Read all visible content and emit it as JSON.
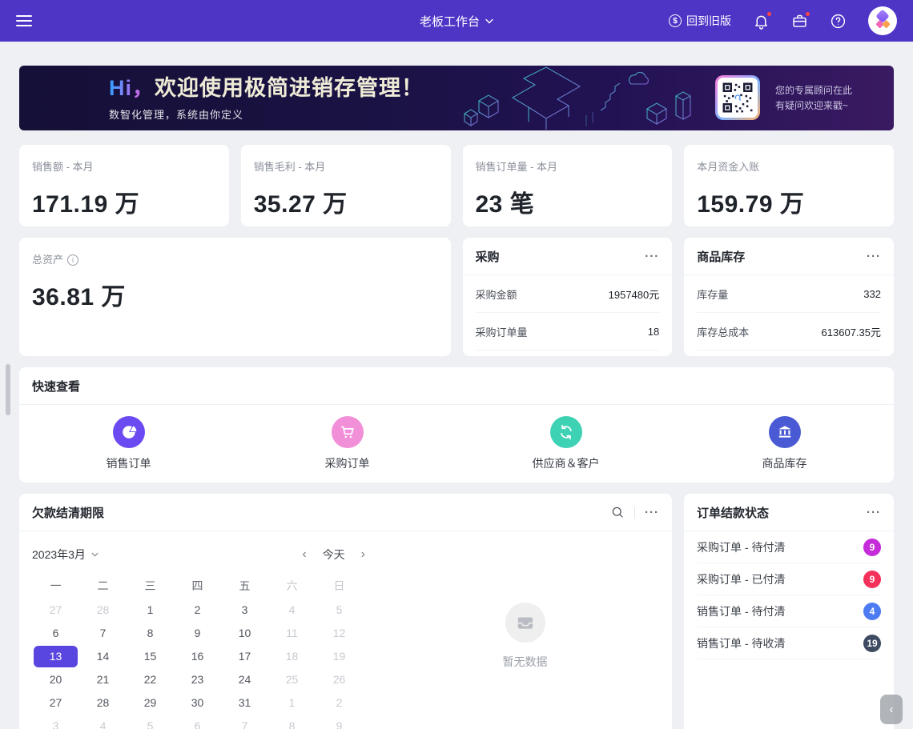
{
  "ui": {
    "more": "···",
    "prev": "‹",
    "next": "›",
    "side_toggle": "‹"
  },
  "navbar": {
    "title": "老板工作台",
    "back_to_old_label": "回到旧版",
    "bg_color": "#4F35C6"
  },
  "banner": {
    "greeting_highlight": "Hi，",
    "greeting": "欢迎使用极简进销存管理！",
    "subtitle": "数智化管理，系统由你定义",
    "qr_caption_line1": "您的专属顾问在此",
    "qr_caption_line2": "有疑问欢迎来戳~"
  },
  "stat_cards": [
    {
      "label": "销售额 - 本月",
      "value": "171.19 万"
    },
    {
      "label": "销售毛利 - 本月",
      "value": "35.27 万"
    },
    {
      "label": "销售订单量 - 本月",
      "value": "23 笔"
    },
    {
      "label": "本月资金入账",
      "value": "159.79 万"
    }
  ],
  "asset_card": {
    "label": "总资产",
    "value": "36.81 万"
  },
  "purchase_card": {
    "title": "采购",
    "rows": [
      {
        "label": "采购金额",
        "value": "1957480元"
      },
      {
        "label": "采购订单量",
        "value": "18"
      }
    ]
  },
  "inventory_card": {
    "title": "商品库存",
    "rows": [
      {
        "label": "库存量",
        "value": "332"
      },
      {
        "label": "库存总成本",
        "value": "613607.35元"
      }
    ]
  },
  "quick_view": {
    "title": "快速查看",
    "items": [
      {
        "label": "销售订单",
        "icon": "pie-chart-icon",
        "color": "#6B4AF1"
      },
      {
        "label": "采购订单",
        "icon": "cart-icon",
        "color": "#F18FD9"
      },
      {
        "label": "供应商＆客户",
        "icon": "sync-icon",
        "color": "#3ED2B5"
      },
      {
        "label": "商品库存",
        "icon": "bank-icon",
        "color": "#4A5AD5"
      }
    ]
  },
  "calendar_card": {
    "title": "欠款结清期限",
    "month_label": "2023年3月",
    "today_label": "今天",
    "selected_color": "#5946E0",
    "empty_text": "暂无数据",
    "weekdays": [
      {
        "label": "一",
        "s": "normal"
      },
      {
        "label": "二",
        "s": "normal"
      },
      {
        "label": "三",
        "s": "normal"
      },
      {
        "label": "四",
        "s": "normal"
      },
      {
        "label": "五",
        "s": "normal"
      },
      {
        "label": "六",
        "s": "muted"
      },
      {
        "label": "日",
        "s": "muted"
      }
    ],
    "weeks": [
      [
        {
          "d": "27",
          "s": "muted"
        },
        {
          "d": "28",
          "s": "muted"
        },
        {
          "d": "1",
          "s": "normal"
        },
        {
          "d": "2",
          "s": "normal"
        },
        {
          "d": "3",
          "s": "normal"
        },
        {
          "d": "4",
          "s": "muted"
        },
        {
          "d": "5",
          "s": "muted"
        }
      ],
      [
        {
          "d": "6",
          "s": "normal"
        },
        {
          "d": "7",
          "s": "normal"
        },
        {
          "d": "8",
          "s": "normal"
        },
        {
          "d": "9",
          "s": "normal"
        },
        {
          "d": "10",
          "s": "normal"
        },
        {
          "d": "11",
          "s": "muted"
        },
        {
          "d": "12",
          "s": "muted"
        }
      ],
      [
        {
          "d": "13",
          "s": "selected"
        },
        {
          "d": "14",
          "s": "normal"
        },
        {
          "d": "15",
          "s": "normal"
        },
        {
          "d": "16",
          "s": "normal"
        },
        {
          "d": "17",
          "s": "normal"
        },
        {
          "d": "18",
          "s": "muted"
        },
        {
          "d": "19",
          "s": "muted"
        }
      ],
      [
        {
          "d": "20",
          "s": "normal"
        },
        {
          "d": "21",
          "s": "normal"
        },
        {
          "d": "22",
          "s": "normal"
        },
        {
          "d": "23",
          "s": "normal"
        },
        {
          "d": "24",
          "s": "normal"
        },
        {
          "d": "25",
          "s": "muted"
        },
        {
          "d": "26",
          "s": "muted"
        }
      ],
      [
        {
          "d": "27",
          "s": "normal"
        },
        {
          "d": "28",
          "s": "normal"
        },
        {
          "d": "29",
          "s": "normal"
        },
        {
          "d": "30",
          "s": "normal"
        },
        {
          "d": "31",
          "s": "normal"
        },
        {
          "d": "1",
          "s": "muted"
        },
        {
          "d": "2",
          "s": "muted"
        }
      ],
      [
        {
          "d": "3",
          "s": "muted"
        },
        {
          "d": "4",
          "s": "muted"
        },
        {
          "d": "5",
          "s": "muted"
        },
        {
          "d": "6",
          "s": "muted"
        },
        {
          "d": "7",
          "s": "muted"
        },
        {
          "d": "8",
          "s": "muted"
        },
        {
          "d": "9",
          "s": "muted"
        }
      ]
    ]
  },
  "order_status_card": {
    "title": "订单结款状态",
    "rows": [
      {
        "label": "采购订单 - 待付清",
        "count": "9",
        "color": "#C52BD9"
      },
      {
        "label": "采购订单 - 已付清",
        "count": "9",
        "color": "#F4315B"
      },
      {
        "label": "销售订单 - 待付清",
        "count": "4",
        "color": "#4D7BF2"
      },
      {
        "label": "销售订单 - 待收清",
        "count": "19",
        "color": "#3D4A62"
      }
    ]
  }
}
